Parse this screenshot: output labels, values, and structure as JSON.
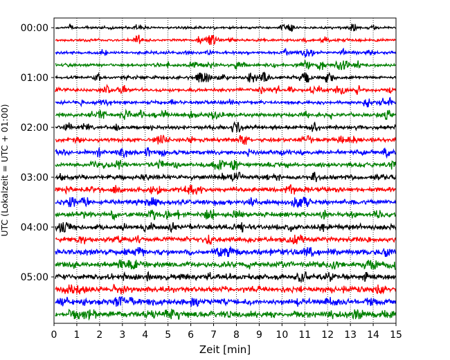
{
  "chart_data": {
    "type": "line",
    "subtype": "helicorder",
    "xlabel": "Zeit  [min]",
    "ylabel": "UTC (Lokalzeit = UTC + 01:00)",
    "x_ticks": [
      0,
      1,
      2,
      3,
      4,
      5,
      6,
      7,
      8,
      9,
      10,
      11,
      12,
      13,
      14,
      15
    ],
    "xlim": [
      0,
      15
    ],
    "y_tick_labels": [
      "00:00",
      "01:00",
      "02:00",
      "03:00",
      "04:00",
      "05:00"
    ],
    "traces_per_hour": 4,
    "trace_count": 24,
    "trace_colors": [
      "#000000",
      "#ff0000",
      "#0000ff",
      "#008000"
    ],
    "grid": "vertical dotted"
  }
}
